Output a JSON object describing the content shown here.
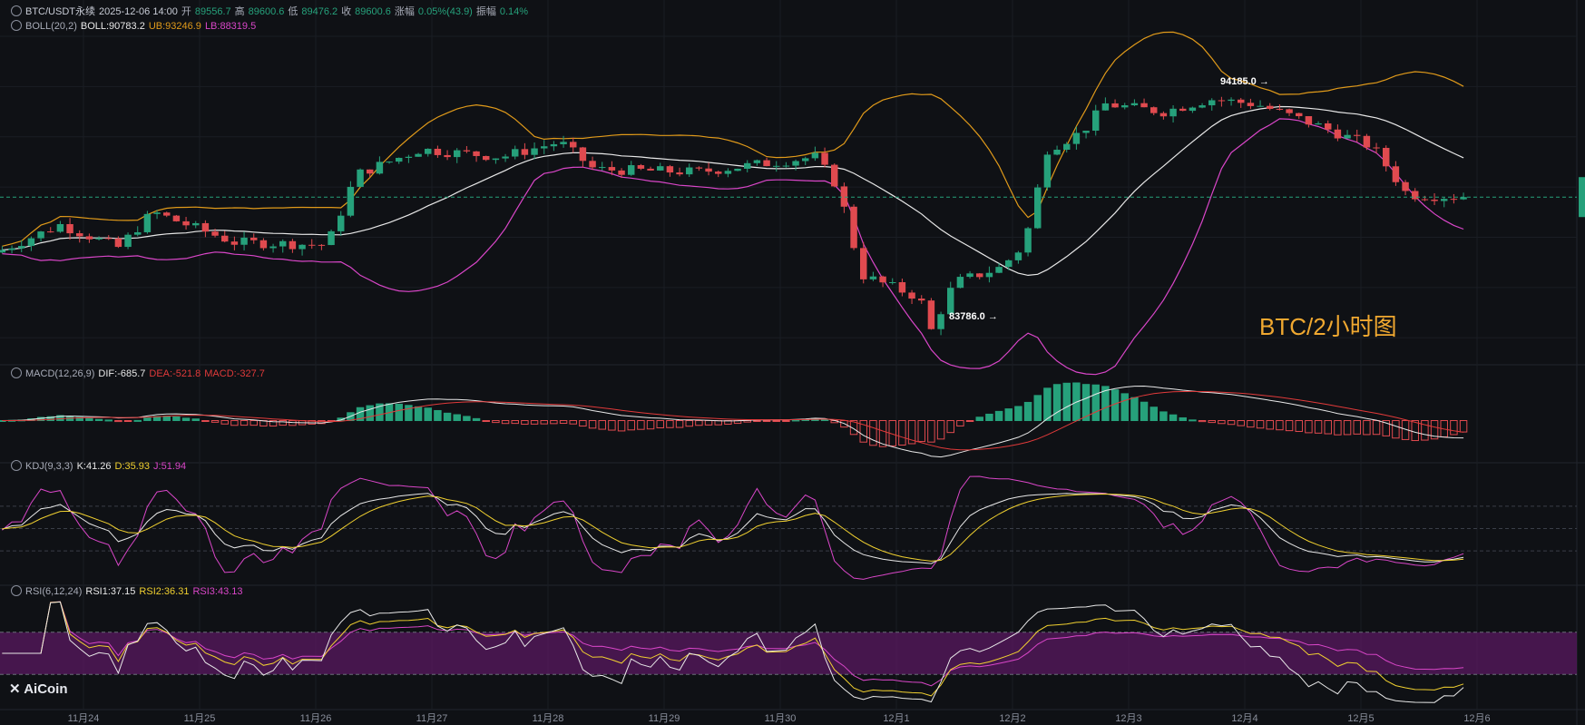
{
  "header": {
    "symbol": "BTC/USDT永续",
    "time": "2025-12-06 14:00",
    "open_label": "开",
    "open": "89556.7",
    "high_label": "高",
    "high": "89600.6",
    "low_label": "低",
    "low": "89476.2",
    "close_label": "收",
    "close": "89600.6",
    "chg_label": "涨幅",
    "chg": "0.05%(43.9)",
    "amp_label": "振幅",
    "amp": "0.14%"
  },
  "boll": {
    "name": "BOLL(20,2)",
    "mid": "BOLL:90783.2",
    "ub": "UB:93246.9",
    "lb": "LB:88319.5"
  },
  "macd": {
    "name": "MACD(12,26,9)",
    "dif": "DIF:-685.7",
    "dea": "DEA:-521.8",
    "macd": "MACD:-327.7"
  },
  "kdj": {
    "name": "KDJ(9,3,3)",
    "k": "K:41.26",
    "d": "D:35.93",
    "j": "J:51.94"
  },
  "rsi": {
    "name": "RSI(6,12,24)",
    "r1": "RSI1:37.15",
    "r2": "RSI2:36.31",
    "r3": "RSI3:43.13"
  },
  "annotations": {
    "high": "94185.0 →",
    "low": "83786.0 →"
  },
  "watermark": "BTC/2小时图",
  "logo": "AiCoin",
  "colors": {
    "up": "#26a17b",
    "down": "#e04a4f",
    "mid": "#e8e8e8",
    "ub": "#e09a1a",
    "lb": "#d946c8",
    "dea": "#e03a3a",
    "rsi_band": "#5a1860"
  },
  "chart_data": {
    "type": "candlestick",
    "interval": "2h",
    "x_ticks": [
      "11月24",
      "11月25",
      "11月26",
      "11月27",
      "11月28",
      "11月29",
      "11月30",
      "12月1",
      "12月2",
      "12月3",
      "12月4",
      "12月5",
      "12月6"
    ],
    "price_anchors": [
      {
        "day": 0,
        "close": 87500
      },
      {
        "day": 0.5,
        "close": 88500
      },
      {
        "day": 1,
        "close": 87600
      },
      {
        "day": 1.3,
        "close": 89000
      },
      {
        "day": 2,
        "close": 87800
      },
      {
        "day": 2.8,
        "close": 87700
      },
      {
        "day": 3.05,
        "close": 90500
      },
      {
        "day": 3.6,
        "close": 91500
      },
      {
        "day": 4.3,
        "close": 91200
      },
      {
        "day": 4.8,
        "close": 91800
      },
      {
        "day": 5.1,
        "close": 90700
      },
      {
        "day": 6,
        "close": 90600
      },
      {
        "day": 7,
        "close": 91200
      },
      {
        "day": 7.2,
        "close": 90000
      },
      {
        "day": 7.4,
        "close": 86500
      },
      {
        "day": 7.9,
        "close": 85600
      },
      {
        "day": 8,
        "close": 84300
      },
      {
        "day": 8.2,
        "close": 86200
      },
      {
        "day": 8.6,
        "close": 86800
      },
      {
        "day": 8.8,
        "close": 87700
      },
      {
        "day": 9.0,
        "close": 91500
      },
      {
        "day": 9.3,
        "close": 92200
      },
      {
        "day": 9.5,
        "close": 93300
      },
      {
        "day": 10,
        "close": 93000
      },
      {
        "day": 10.4,
        "close": 93500
      },
      {
        "day": 10.8,
        "close": 93300
      },
      {
        "day": 11.3,
        "close": 92500
      },
      {
        "day": 11.8,
        "close": 91600
      },
      {
        "day": 12.1,
        "close": 89700
      },
      {
        "day": 12.6,
        "close": 89600
      }
    ],
    "price_high": 94185.0,
    "price_low": 83786.0,
    "last_close": 89600.6,
    "ylim": [
      83000,
      96000
    ],
    "indicators": {
      "BOLL": {
        "period": 20,
        "k": 2,
        "mid": 90783.2,
        "ub": 93246.9,
        "lb": 88319.5
      },
      "MACD": {
        "fast": 12,
        "slow": 26,
        "signal": 9,
        "dif": -685.7,
        "dea": -521.8,
        "macd": -327.7
      },
      "KDJ": {
        "n": 9,
        "m1": 3,
        "m2": 3,
        "k": 41.26,
        "d": 35.93,
        "j": 51.94,
        "ref_lines": [
          80,
          50,
          20
        ]
      },
      "RSI": {
        "periods": [
          6,
          12,
          24
        ],
        "rsi1": 37.15,
        "rsi2": 36.31,
        "rsi3": 43.13,
        "band": [
          30,
          70
        ]
      }
    }
  }
}
